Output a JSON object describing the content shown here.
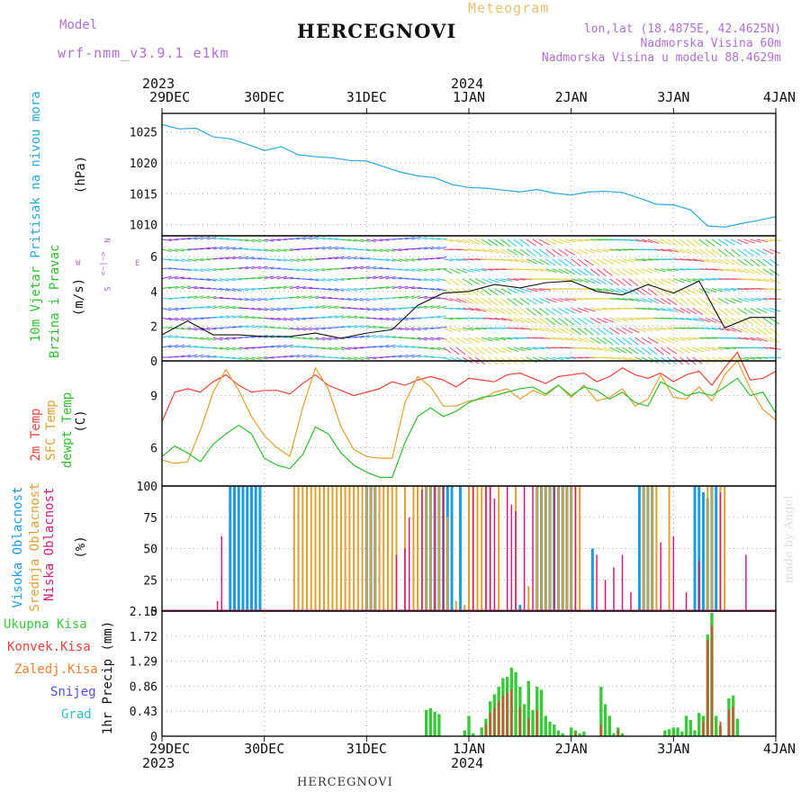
{
  "header": {
    "model_label": "Model",
    "model_name": "wrf-nmm_v3.9.1 e1km",
    "title": "HERCEGNOVI",
    "meteogram": "Meteogram",
    "lonlat": "lon,lat (18.4875E, 42.4625N)",
    "elevation": "Nadmorska Visina 60m",
    "model_elevation": "Nadmorska Visina u modelu 88.4629m",
    "credit": "made by Angel",
    "footer_title": "HERCEGNOVI"
  },
  "colors": {
    "pressure": "#2aa8e0",
    "temp2m": "#e8443a",
    "sfc_temp": "#e0a030",
    "dewpt": "#2fc02f",
    "high_cloud": "#1f9be0",
    "mid_cloud": "#e0a030",
    "low_cloud": "#d01b7a",
    "total_precip": "#3cc83c",
    "conv_precip": "#e8443a",
    "frozen": "#f08030",
    "snow": "#5050e0",
    "hail": "#30c0c0",
    "label_purple": "#b070d0"
  },
  "time_axis": {
    "top_years": [
      {
        "label": "2023",
        "at": 0
      },
      {
        "label": "2024",
        "at": 3
      }
    ],
    "ticks": [
      "29DEC",
      "30DEC",
      "31DEC",
      "1JAN",
      "2JAN",
      "3JAN",
      "4JAN"
    ]
  },
  "panels": {
    "pressure": {
      "label": "Pritisak na nivou mora",
      "unit": "(hPa)",
      "ticks": [
        "1025",
        "1020",
        "1015",
        "1010"
      ]
    },
    "wind": {
      "label1": "10m Vjetar",
      "label2": "Brzina i Pravac",
      "unit": "(m/s)",
      "ticks": [
        "6",
        "4",
        "2",
        "0"
      ],
      "compass": {
        "n": "N",
        "s": "S",
        "w": "W",
        "e": "E",
        "sym": "<—|—>"
      }
    },
    "temp": {
      "label1": "2m Temp",
      "label2": "SFC Temp",
      "label3": "dewpt Temp",
      "unit": "(C)",
      "ticks": [
        "9",
        "6"
      ]
    },
    "cloud": {
      "label1": "Visoka Oblacnost",
      "label2": "Srednja Oblacnost",
      "label3": "Niska Oblacnost",
      "unit": "(%)",
      "ticks": [
        "100",
        "75",
        "50",
        "25",
        "0"
      ]
    },
    "precip": {
      "label_unit": "1hr Precip (mm)",
      "ticks": [
        "2.15",
        "1.72",
        "1.29",
        "0.86",
        "0.43",
        "0"
      ],
      "legend": [
        "Ukupna Kisa",
        "Konvek.Kisa",
        "Zaledj.Kisa",
        "Snijeg",
        "Grad"
      ]
    }
  },
  "chart_data": [
    {
      "type": "line",
      "title": "Pritisak na nivou mora",
      "ylabel": "(hPa)",
      "ylim": [
        1008.2,
        1028
      ],
      "x_hours": [
        0,
        4,
        8,
        12,
        16,
        20,
        24,
        28,
        32,
        36,
        40,
        44,
        48,
        52,
        56,
        60,
        64,
        68,
        72,
        76,
        80,
        84,
        88,
        92,
        96,
        100,
        104,
        108,
        112,
        116,
        120,
        124,
        128,
        132,
        136,
        140,
        144
      ],
      "series": [
        {
          "values": [
            1026.2,
            1025.5,
            1025.6,
            1024.2,
            1023.9,
            1023.0,
            1022.0,
            1022.6,
            1021.3,
            1021.0,
            1020.8,
            1020.4,
            1020.3,
            1019.4,
            1018.5,
            1017.9,
            1017.6,
            1016.5,
            1016.0,
            1015.9,
            1015.6,
            1015.3,
            1015.7,
            1015.1,
            1014.8,
            1015.3,
            1015.4,
            1015.2,
            1014.3,
            1013.3,
            1013.2,
            1012.4,
            1009.8,
            1009.6,
            1010.2,
            1010.7,
            1011.3
          ]
        }
      ]
    },
    {
      "type": "line",
      "title": "10m Vjetar Brzina i Pravac",
      "ylabel": "(m/s)",
      "ylim": [
        0,
        7.2
      ],
      "x_hours": [
        0,
        6,
        12,
        18,
        24,
        30,
        36,
        42,
        48,
        54,
        60,
        66,
        72,
        78,
        84,
        90,
        96,
        102,
        108,
        114,
        120,
        126,
        132,
        138,
        144
      ],
      "series": [
        {
          "values": [
            1.5,
            2.3,
            1.5,
            1.5,
            1.4,
            1.4,
            1.6,
            1.3,
            1.6,
            1.8,
            3.2,
            3.9,
            4.0,
            4.4,
            4.2,
            4.5,
            4.6,
            4.0,
            3.8,
            4.4,
            3.9,
            4.6,
            1.9,
            2.5,
            2.5
          ]
        }
      ]
    },
    {
      "type": "line",
      "title": "2m Temp / SFC Temp / dewpt Temp",
      "ylabel": "(C)",
      "ylim": [
        3.8,
        11
      ],
      "x_hours": [
        0,
        3,
        6,
        9,
        12,
        15,
        18,
        21,
        24,
        27,
        30,
        33,
        36,
        39,
        42,
        45,
        48,
        51,
        54,
        57,
        60,
        63,
        66,
        69,
        72,
        75,
        78,
        81,
        84,
        87,
        90,
        93,
        96,
        99,
        102,
        105,
        108,
        111,
        114,
        117,
        120,
        123,
        126,
        129,
        132,
        135,
        138,
        141,
        144
      ],
      "series": [
        {
          "name": "2m Temp",
          "values": [
            7.5,
            9.2,
            9.4,
            9.2,
            9.8,
            10.2,
            9.6,
            9.2,
            9.3,
            9.3,
            9.1,
            9.7,
            10.2,
            9.6,
            9.3,
            9.0,
            9.2,
            9.4,
            9.8,
            9.6,
            9.9,
            10.1,
            9.9,
            9.5,
            10.0,
            9.9,
            9.8,
            10.2,
            10.3,
            10.0,
            9.7,
            10.1,
            10.2,
            10.3,
            9.8,
            10.1,
            10.6,
            10.2,
            10.0,
            10.3,
            9.8,
            10.2,
            10.4,
            9.6,
            10.6,
            11.5,
            9.9,
            10.0,
            10.4
          ]
        },
        {
          "name": "SFC Temp",
          "values": [
            5.3,
            5.1,
            5.2,
            7.0,
            9.2,
            10.5,
            9.3,
            7.8,
            6.7,
            6.0,
            5.5,
            8.3,
            10.6,
            9.4,
            7.2,
            5.9,
            5.5,
            5.4,
            5.4,
            8.6,
            10.1,
            9.5,
            8.4,
            8.4,
            8.7,
            8.8,
            9.2,
            9.4,
            8.8,
            9.3,
            9.0,
            9.6,
            8.9,
            9.6,
            8.7,
            8.9,
            9.4,
            8.4,
            8.8,
            10.2,
            8.9,
            8.8,
            9.5,
            8.7,
            10.2,
            11.0,
            9.4,
            8.2,
            7.6
          ]
        },
        {
          "name": "dewpt Temp",
          "values": [
            5.5,
            6.1,
            5.7,
            5.2,
            6.2,
            6.8,
            7.3,
            6.8,
            5.4,
            5.0,
            4.8,
            5.6,
            7.2,
            6.8,
            5.7,
            5.0,
            4.6,
            4.3,
            4.3,
            6.3,
            7.8,
            8.3,
            7.8,
            8.1,
            8.6,
            8.9,
            9.0,
            9.2,
            9.4,
            9.5,
            9.1,
            9.6,
            9.0,
            9.5,
            9.3,
            8.8,
            9.2,
            8.6,
            8.4,
            9.8,
            9.4,
            9.0,
            9.2,
            9.0,
            9.5,
            10.0,
            9.0,
            9.2,
            8.0
          ]
        }
      ]
    },
    {
      "type": "bar",
      "title": "Visoka / Srednja / Niska Oblacnost",
      "ylabel": "(%)",
      "ylim": [
        0,
        100
      ],
      "series": [
        {
          "name": "Visoka Oblacnost",
          "hours": [
            16,
            17,
            18,
            19,
            20,
            21,
            22,
            23,
            48,
            49,
            50,
            62,
            63,
            64,
            65,
            66,
            67,
            68,
            70,
            84,
            88,
            89,
            90,
            91,
            92,
            93,
            94,
            95,
            96,
            101,
            112,
            113,
            114,
            115,
            125,
            126,
            127,
            128,
            129,
            130
          ],
          "values": [
            100,
            100,
            100,
            100,
            100,
            100,
            100,
            100,
            100,
            100,
            100,
            100,
            100,
            100,
            100,
            100,
            100,
            100,
            100,
            5,
            100,
            100,
            100,
            100,
            100,
            100,
            100,
            100,
            100,
            50,
            100,
            100,
            100,
            100,
            100,
            100,
            95,
            90,
            100,
            100
          ]
        },
        {
          "name": "Srednja Oblacnost",
          "hours": [
            31,
            32,
            33,
            34,
            35,
            36,
            37,
            38,
            39,
            40,
            41,
            42,
            43,
            44,
            45,
            46,
            47,
            48,
            49,
            50,
            51,
            52,
            53,
            54,
            55,
            57,
            59,
            60,
            61,
            62,
            63,
            64,
            65,
            66,
            67,
            69,
            71,
            72,
            73,
            74,
            75,
            76,
            77,
            79,
            83,
            86,
            88,
            89,
            90,
            91,
            92,
            93,
            94,
            95,
            96,
            97,
            98,
            113,
            114,
            115,
            116,
            119,
            128,
            129,
            131,
            132
          ],
          "values": [
            100,
            100,
            100,
            100,
            100,
            100,
            100,
            100,
            100,
            100,
            100,
            100,
            100,
            100,
            100,
            100,
            100,
            100,
            100,
            100,
            100,
            100,
            100,
            100,
            100,
            100,
            100,
            100,
            100,
            100,
            100,
            100,
            100,
            100,
            75,
            8,
            5,
            100,
            100,
            100,
            100,
            100,
            100,
            100,
            100,
            20,
            100,
            100,
            100,
            100,
            100,
            100,
            100,
            100,
            100,
            100,
            100,
            100,
            100,
            100,
            100,
            100,
            100,
            100,
            100,
            100
          ]
        },
        {
          "name": "Niska Oblacnost",
          "hours": [
            13,
            14,
            55,
            57,
            58,
            61,
            64,
            66,
            73,
            76,
            77,
            78,
            81,
            82,
            83,
            85,
            87,
            92,
            97,
            102,
            104,
            106,
            108,
            110,
            117,
            120,
            123,
            126,
            131,
            137
          ],
          "values": [
            8,
            60,
            45,
            50,
            75,
            97,
            100,
            100,
            100,
            100,
            100,
            90,
            100,
            85,
            80,
            100,
            100,
            100,
            100,
            45,
            25,
            35,
            45,
            15,
            55,
            60,
            15,
            40,
            95,
            45
          ]
        }
      ]
    },
    {
      "type": "bar",
      "title": "1hr Precip (mm)",
      "ylabel": "1hr Precip (mm)",
      "ylim": [
        0,
        2.15
      ],
      "series": [
        {
          "name": "Ukupna Kisa",
          "hours": [
            62,
            63,
            64,
            65,
            71,
            72,
            73,
            75,
            76,
            77,
            78,
            79,
            80,
            81,
            82,
            83,
            84,
            85,
            86,
            87,
            88,
            89,
            90,
            91,
            92,
            93,
            94,
            96,
            97,
            98,
            99,
            103,
            104,
            105,
            106,
            107,
            108,
            118,
            119,
            120,
            121,
            122,
            123,
            124,
            125,
            126,
            127,
            128,
            129,
            130,
            131,
            133,
            134,
            135
          ],
          "values": [
            0.45,
            0.48,
            0.42,
            0.38,
            0.1,
            0.35,
            0.05,
            0.15,
            0.3,
            0.6,
            0.72,
            0.85,
            1.0,
            1.02,
            1.18,
            1.1,
            0.85,
            0.55,
            0.95,
            0.45,
            0.85,
            0.8,
            0.35,
            0.25,
            0.2,
            0.1,
            0.05,
            0.15,
            0.1,
            0.05,
            0.08,
            0.85,
            0.55,
            0.35,
            0.05,
            0.15,
            0.05,
            0.1,
            0.12,
            0.15,
            0.15,
            0.08,
            0.35,
            0.28,
            0.1,
            0.4,
            0.35,
            1.75,
            2.12,
            0.35,
            0.18,
            0.65,
            0.7,
            0.3
          ]
        },
        {
          "name": "Konvek.Kisa",
          "hours": [
            76,
            77,
            78,
            79,
            80,
            81,
            82,
            84,
            86,
            88,
            97,
            103,
            107,
            127,
            128,
            129,
            131,
            133,
            134
          ],
          "values": [
            0.2,
            0.4,
            0.5,
            0.6,
            0.7,
            0.75,
            0.8,
            0.5,
            0.3,
            0.45,
            0.05,
            0.2,
            0.1,
            0.25,
            1.65,
            1.9,
            0.25,
            0.45,
            0.5
          ]
        }
      ]
    }
  ]
}
